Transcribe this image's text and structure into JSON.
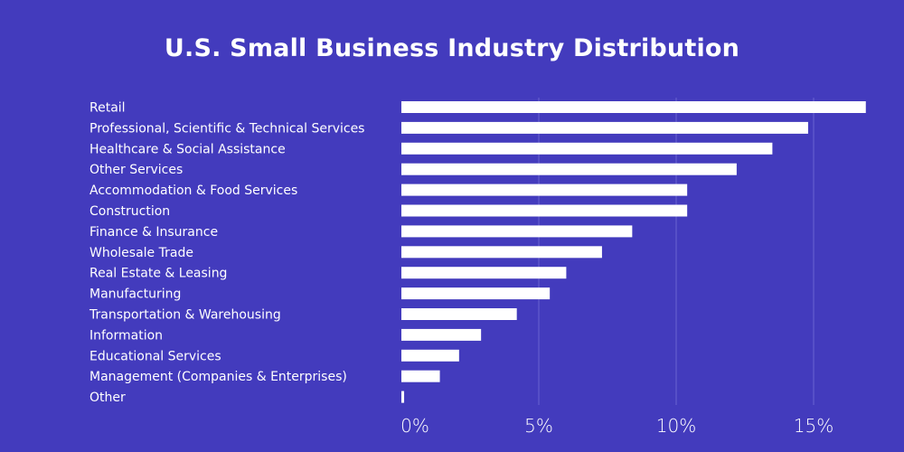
{
  "chart_data": {
    "type": "bar",
    "orientation": "horizontal",
    "title": "U.S. Small Business Industry Distribution",
    "xlabel": "",
    "ylabel": "",
    "xlim": [
      0,
      16.5
    ],
    "grid": true,
    "tick_values": [
      0,
      5,
      10,
      15
    ],
    "tick_labels": [
      "0%",
      "5%",
      "10%",
      "15%"
    ],
    "categories": [
      "Retail",
      "Professional, Scientific & Technical Services",
      "Healthcare & Social Assistance",
      "Other Services",
      "Accommodation & Food Services",
      "Construction",
      "Finance & Insurance",
      "Wholesale Trade",
      "Real Estate & Leasing",
      "Manufacturing",
      "Transportation & Warehousing",
      "Information",
      "Educational Services",
      "Management (Companies & Enterprises)",
      "Other"
    ],
    "values": [
      16.9,
      14.8,
      13.5,
      12.2,
      10.4,
      10.4,
      8.4,
      7.3,
      6.0,
      5.4,
      4.2,
      2.9,
      2.1,
      1.4,
      0.1
    ],
    "colors": {
      "background": "#433bbd",
      "bar": "#ffffff",
      "grid": "#6a63d1",
      "text": "#ffffff"
    }
  }
}
